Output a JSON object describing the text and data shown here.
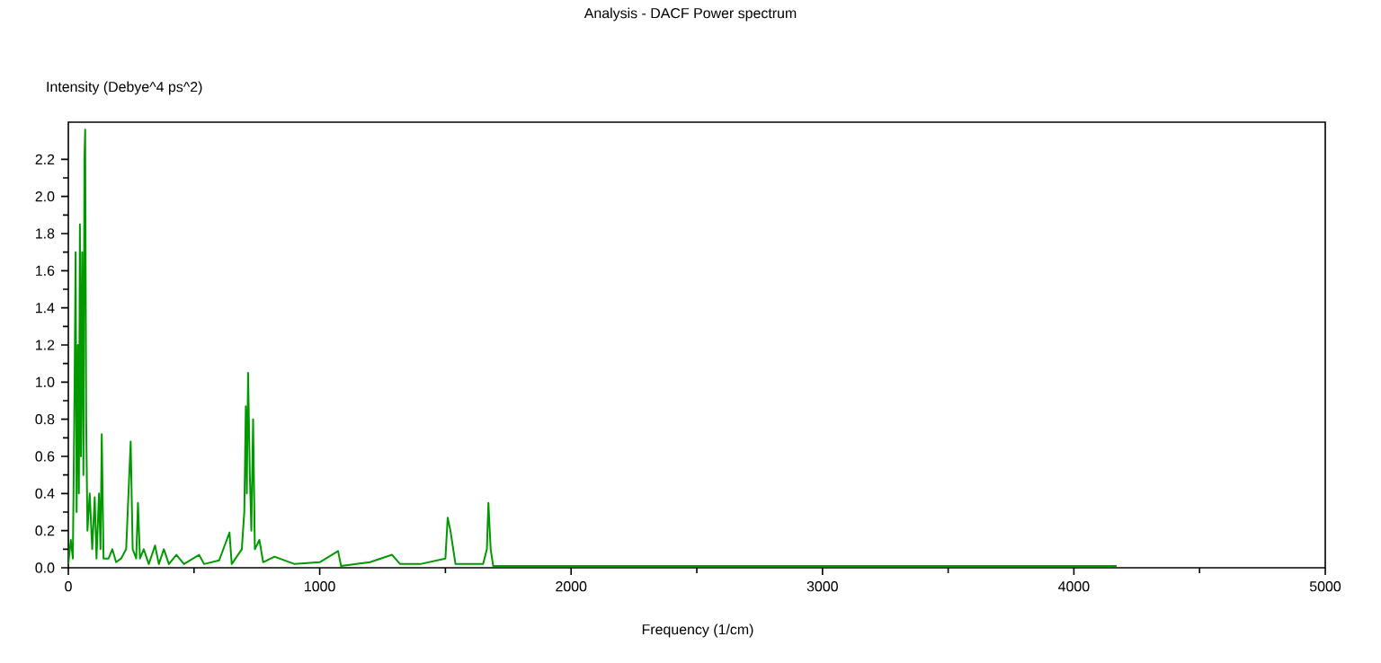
{
  "chart_data": {
    "type": "line",
    "title": "Analysis - DACF Power spectrum",
    "xlabel": "Frequency (1/cm)",
    "ylabel": "Intensity (Debye^4 ps^2)",
    "xlim": [
      0,
      5000
    ],
    "ylim": [
      0,
      2.4
    ],
    "xticks": [
      0,
      1000,
      2000,
      3000,
      4000,
      5000
    ],
    "yticks": [
      {
        "value": 0,
        "label": "0.0"
      },
      0.2,
      0.4,
      0.6,
      0.8,
      {
        "value": 1,
        "label": "1.0"
      },
      1.2,
      1.4,
      1.6,
      1.8,
      {
        "value": 2,
        "label": "2.0"
      },
      2.2
    ],
    "series": [
      {
        "color": "#009900",
        "x": [
          0,
          10,
          18,
          25,
          29,
          33,
          38,
          42,
          46,
          50,
          55,
          60,
          64,
          67,
          71,
          76,
          85,
          95,
          105,
          112,
          122,
          128,
          133,
          140,
          160,
          175,
          190,
          210,
          230,
          248,
          256,
          270,
          277,
          285,
          300,
          320,
          345,
          360,
          380,
          400,
          430,
          460,
          520,
          540,
          600,
          641,
          650,
          690,
          700,
          706,
          710,
          715,
          722,
          728,
          735,
          742,
          760,
          775,
          820,
          900,
          1000,
          1073,
          1085,
          1200,
          1288,
          1320,
          1400,
          1500,
          1509,
          1520,
          1540,
          1650,
          1665,
          1671,
          1680,
          1690,
          2000,
          3000,
          4170
        ],
        "values": [
          0.02,
          0.15,
          0.05,
          1.0,
          1.7,
          0.3,
          1.2,
          0.4,
          1.85,
          0.6,
          1.7,
          0.5,
          2.2,
          2.36,
          0.8,
          0.2,
          0.4,
          0.1,
          0.38,
          0.05,
          0.4,
          0.1,
          0.72,
          0.05,
          0.05,
          0.1,
          0.03,
          0.05,
          0.1,
          0.68,
          0.1,
          0.05,
          0.35,
          0.05,
          0.1,
          0.02,
          0.12,
          0.02,
          0.1,
          0.02,
          0.07,
          0.02,
          0.07,
          0.02,
          0.04,
          0.19,
          0.02,
          0.1,
          0.3,
          0.87,
          0.4,
          1.05,
          0.5,
          0.2,
          0.8,
          0.1,
          0.15,
          0.03,
          0.06,
          0.02,
          0.03,
          0.09,
          0.01,
          0.03,
          0.07,
          0.02,
          0.02,
          0.05,
          0.27,
          0.2,
          0.02,
          0.02,
          0.1,
          0.35,
          0.1,
          0.01,
          0.01,
          0.01,
          0.01
        ]
      }
    ]
  }
}
